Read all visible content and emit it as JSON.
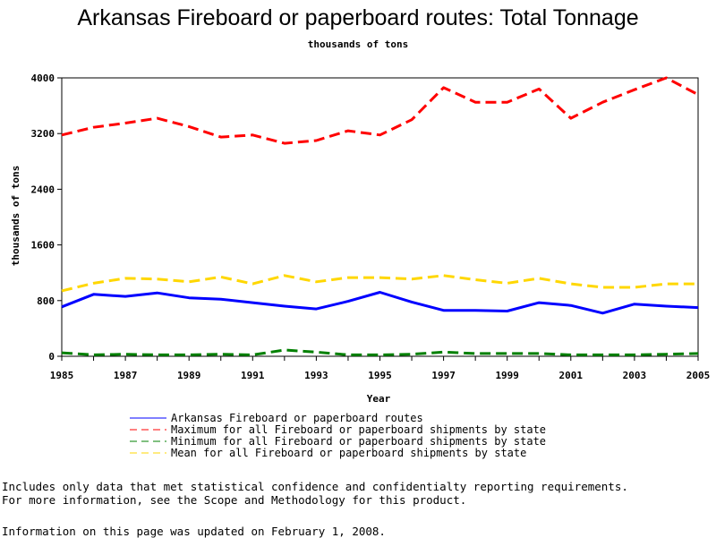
{
  "chart_data": {
    "type": "line",
    "title": "Arkansas Fireboard or paperboard routes: Total Tonnage",
    "subtitle": "thousands of tons",
    "xlabel": "Year",
    "ylabel": "thousands of tons",
    "x": [
      1985,
      1986,
      1987,
      1988,
      1989,
      1990,
      1991,
      1992,
      1993,
      1994,
      1995,
      1996,
      1997,
      1998,
      1999,
      2000,
      2001,
      2002,
      2003,
      2004,
      2005
    ],
    "xlim": [
      1985,
      2005
    ],
    "ylim": [
      0,
      4000
    ],
    "x_ticks": [
      "1985",
      "1987",
      "1989",
      "1991",
      "1993",
      "1995",
      "1997",
      "1999",
      "2001",
      "2003",
      "2005"
    ],
    "y_ticks": [
      "0",
      "800",
      "1600",
      "2400",
      "3200",
      "4000"
    ],
    "grid": false,
    "legend_position": "bottom",
    "series": [
      {
        "name": "Arkansas Fireboard or paperboard routes",
        "color": "#0000ff",
        "style": "solid",
        "values": [
          710,
          890,
          860,
          910,
          840,
          820,
          770,
          720,
          680,
          790,
          920,
          780,
          660,
          660,
          650,
          770,
          730,
          620,
          750,
          720,
          700
        ]
      },
      {
        "name": "Maximum for all Fireboard or paperboard shipments by state",
        "color": "#ff0000",
        "style": "dashed",
        "values": [
          3180,
          3290,
          3350,
          3420,
          3300,
          3150,
          3180,
          3060,
          3100,
          3240,
          3180,
          3400,
          3860,
          3650,
          3650,
          3840,
          3420,
          3650,
          3830,
          4000,
          3760
        ]
      },
      {
        "name": "Minimum for all Fireboard or paperboard shipments by state",
        "color": "#008000",
        "style": "dashed",
        "values": [
          50,
          20,
          30,
          20,
          20,
          30,
          20,
          90,
          60,
          20,
          20,
          30,
          60,
          40,
          40,
          40,
          20,
          20,
          20,
          30,
          40
        ]
      },
      {
        "name": "Mean for all Fireboard or paperboard shipments by state",
        "color": "#ffd700",
        "style": "dashed",
        "values": [
          940,
          1050,
          1120,
          1110,
          1070,
          1140,
          1040,
          1160,
          1070,
          1130,
          1130,
          1110,
          1160,
          1100,
          1050,
          1120,
          1040,
          990,
          990,
          1040,
          1040
        ]
      }
    ]
  },
  "footnotes": {
    "line1": "Includes only data that met statistical confidence and confidentialty reporting requirements.",
    "line2": "For more information, see the Scope and Methodology for this product.",
    "line3": "Information on this page was updated on February 1, 2008."
  }
}
